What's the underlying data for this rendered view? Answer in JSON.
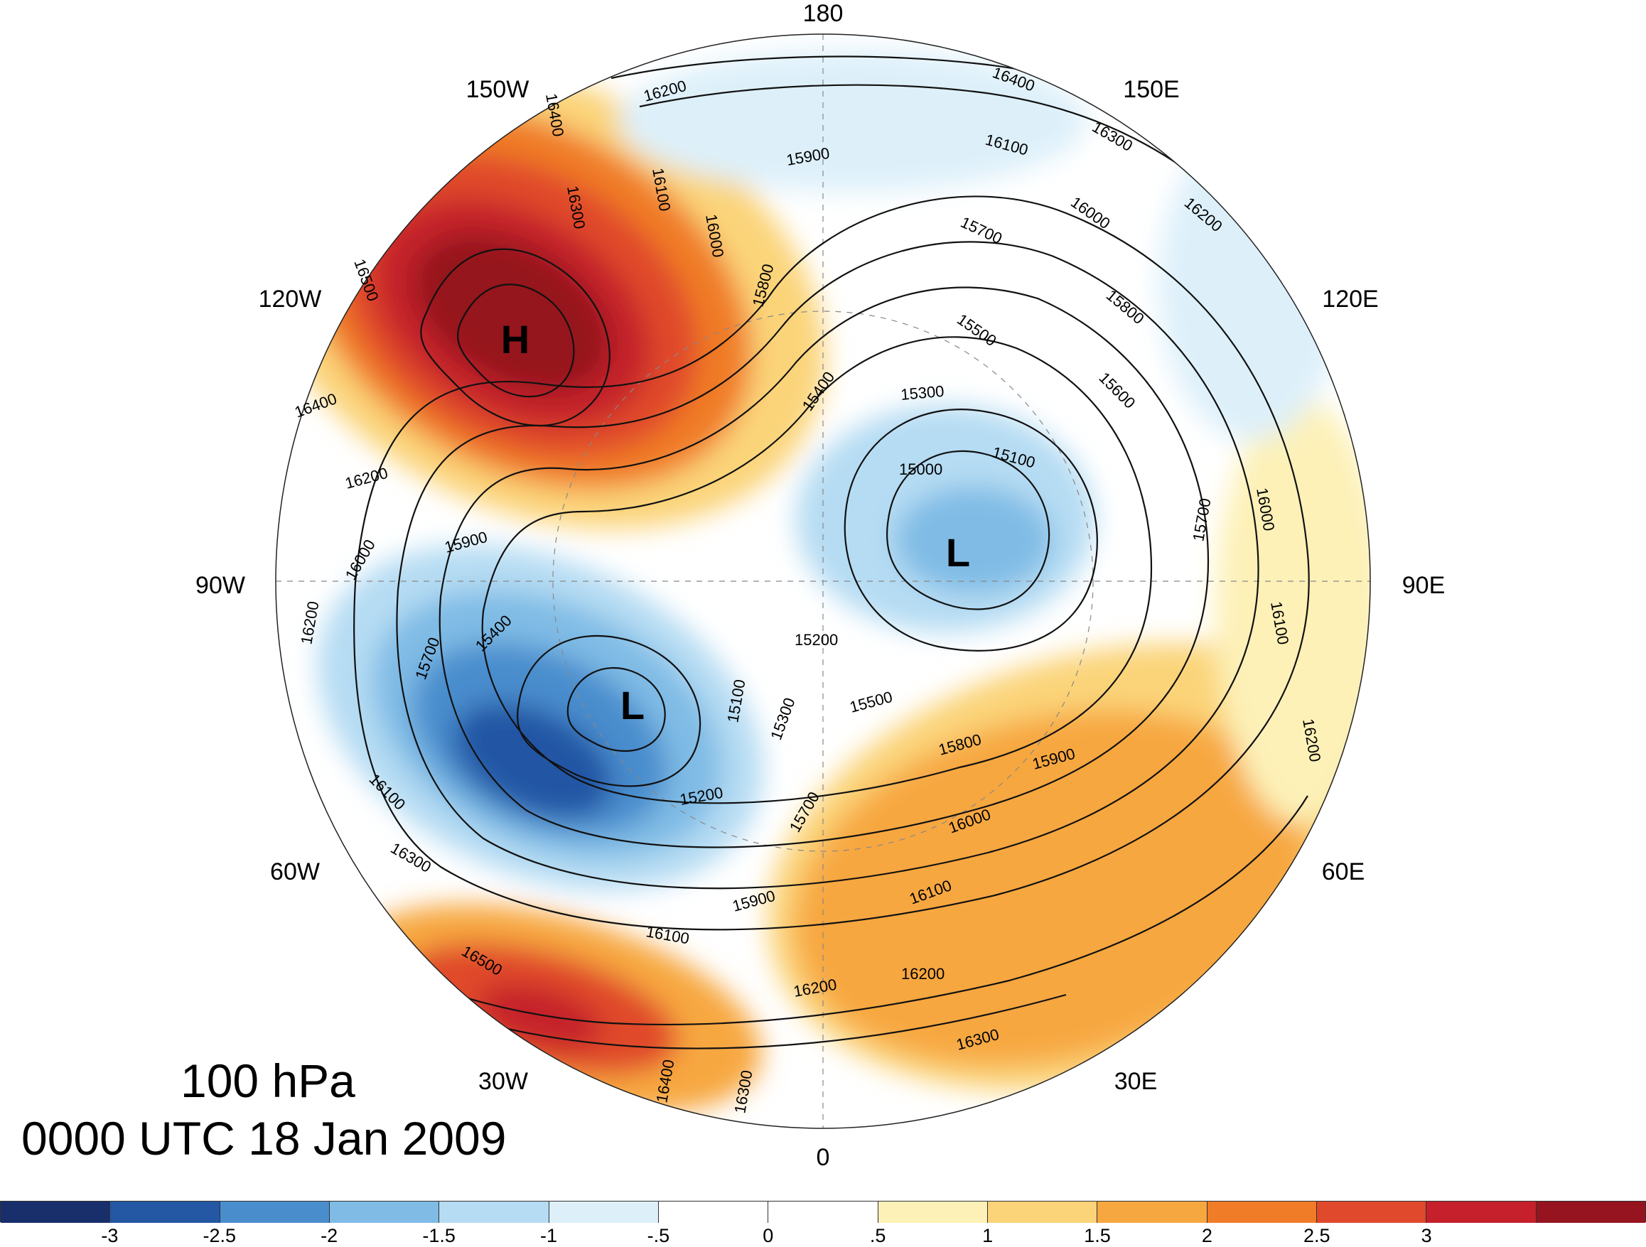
{
  "title": {
    "level": "100 hPa",
    "datetime": "0000 UTC 18 Jan 2009"
  },
  "longitude_labels": {
    "top": "180",
    "upper_left": "150W",
    "upper_right": "150E",
    "left_upper": "120W",
    "right_upper": "120E",
    "left": "90W",
    "right": "90E",
    "left_lower": "60W",
    "right_lower": "60E",
    "lower_left": "30W",
    "lower_right": "30E",
    "bottom": "0"
  },
  "pressure_centers": [
    {
      "type": "H",
      "name": "high-over-alaska"
    },
    {
      "type": "L",
      "name": "low-over-siberia"
    },
    {
      "type": "L",
      "name": "low-over-canada"
    }
  ],
  "contour_labels": [
    "16400",
    "16300",
    "16100",
    "16200",
    "16000",
    "15900",
    "15800",
    "15700",
    "15500",
    "15600",
    "15300",
    "15400",
    "15100",
    "15000",
    "15200",
    "16500"
  ],
  "colorbar": {
    "colors": [
      "#182f6b",
      "#2457a4",
      "#4a8dcd",
      "#7fbbe5",
      "#b5dcf3",
      "#ddf0fa",
      "#ffffff",
      "#ffffff",
      "#fdf1b8",
      "#fbd479",
      "#f7a73f",
      "#f07c27",
      "#e0492b",
      "#c5202b",
      "#95141f"
    ],
    "ticks": [
      "-3",
      "-2.5",
      "-2",
      "-1.5",
      "-1",
      "-.5",
      "0",
      ".5",
      "1",
      "1.5",
      "2",
      "2.5",
      "3"
    ]
  }
}
